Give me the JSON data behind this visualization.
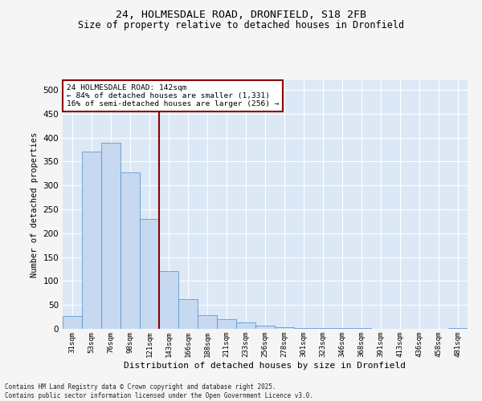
{
  "title_line1": "24, HOLMESDALE ROAD, DRONFIELD, S18 2FB",
  "title_line2": "Size of property relative to detached houses in Dronfield",
  "xlabel": "Distribution of detached houses by size in Dronfield",
  "ylabel": "Number of detached properties",
  "categories": [
    "31sqm",
    "53sqm",
    "76sqm",
    "98sqm",
    "121sqm",
    "143sqm",
    "166sqm",
    "188sqm",
    "211sqm",
    "233sqm",
    "256sqm",
    "278sqm",
    "301sqm",
    "323sqm",
    "346sqm",
    "368sqm",
    "391sqm",
    "413sqm",
    "436sqm",
    "458sqm",
    "481sqm"
  ],
  "values": [
    27,
    370,
    390,
    327,
    230,
    120,
    62,
    28,
    20,
    13,
    6,
    4,
    2,
    1,
    1,
    1,
    0,
    0,
    0,
    0,
    2
  ],
  "bar_color": "#c6d9f0",
  "bar_edge_color": "#5b9bd5",
  "vline_index": 5,
  "vline_color": "#8b0000",
  "annotation_title": "24 HOLMESDALE ROAD: 142sqm",
  "annotation_line1": "← 84% of detached houses are smaller (1,331)",
  "annotation_line2": "16% of semi-detached houses are larger (256) →",
  "annotation_box_color": "#8b0000",
  "annotation_bg": "#ffffff",
  "ylim": [
    0,
    520
  ],
  "yticks": [
    0,
    50,
    100,
    150,
    200,
    250,
    300,
    350,
    400,
    450,
    500
  ],
  "background_color": "#dce8f5",
  "grid_color": "#ffffff",
  "fig_bg_color": "#f5f5f5",
  "footer_line1": "Contains HM Land Registry data © Crown copyright and database right 2025.",
  "footer_line2": "Contains public sector information licensed under the Open Government Licence v3.0."
}
